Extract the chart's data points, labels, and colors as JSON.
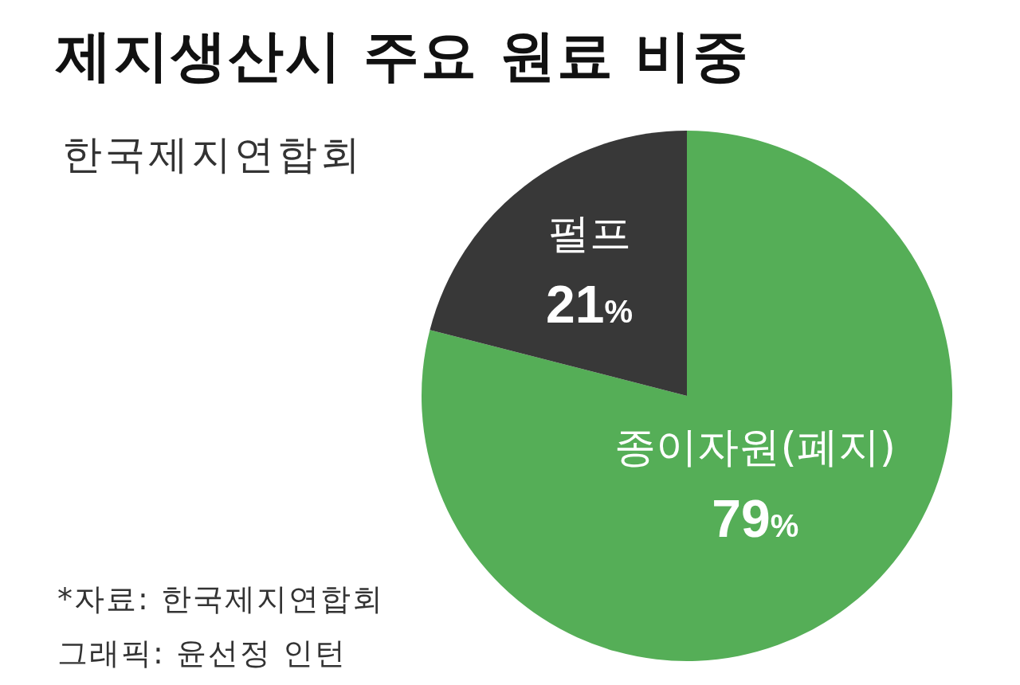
{
  "chart_data": {
    "type": "pie",
    "title": "제지생산시 주요 원료 비중",
    "subtitle": "한국제지연합회",
    "categories": [
      "종이자원(폐지)",
      "펄프"
    ],
    "values": [
      79,
      21
    ],
    "colors": [
      "#55ae57",
      "#383838"
    ],
    "value_labels": [
      "79%",
      "21%"
    ],
    "annotations": [
      "*자료: 한국제지연합회",
      "그래픽: 윤선정 인턴"
    ]
  }
}
